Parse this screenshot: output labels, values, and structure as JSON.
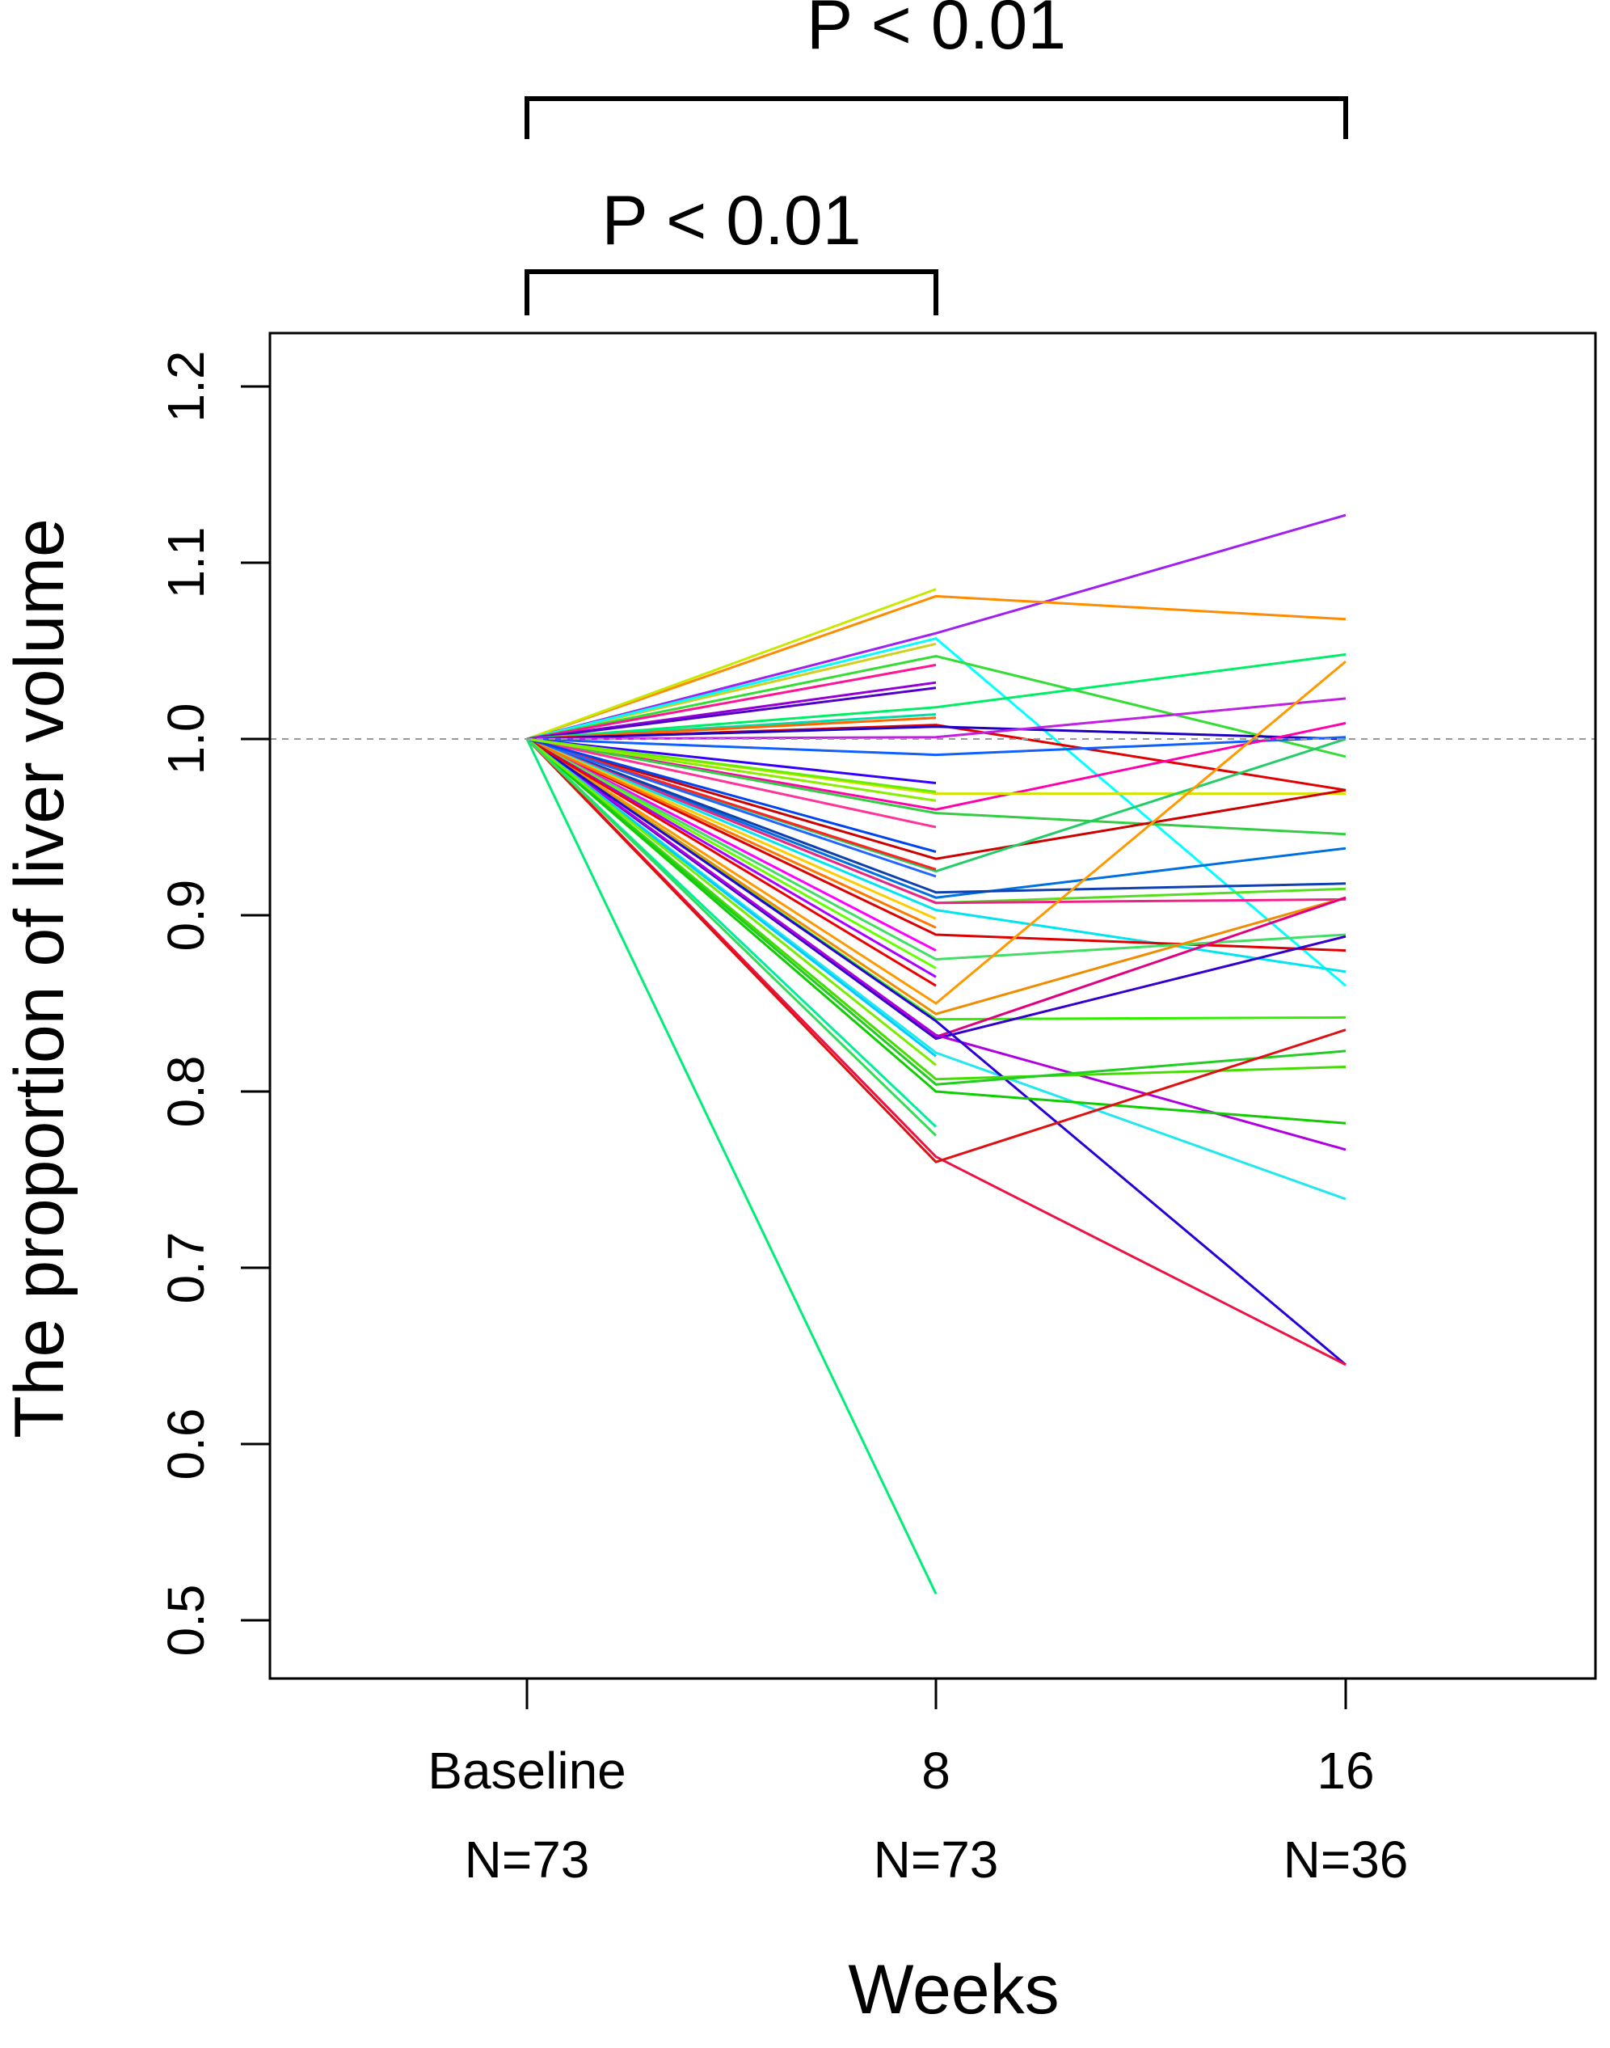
{
  "chart_data": {
    "type": "line",
    "title": "",
    "xlabel": "Weeks",
    "ylabel": "The proportion of liver volume",
    "categories": [
      "Baseline",
      "8",
      "16"
    ],
    "category_counts": [
      "N=73",
      "N=73",
      "N=36"
    ],
    "ylim": [
      0.47,
      1.23
    ],
    "yticks": [
      "0.5",
      "0.6",
      "0.7",
      "0.8",
      "0.9",
      "1.0",
      "1.1",
      "1.2"
    ],
    "reference_line": 1.0,
    "grid": false,
    "legend": "none",
    "comparisons": [
      {
        "from": "Baseline",
        "to": "16",
        "label": "P < 0.01"
      },
      {
        "from": "Baseline",
        "to": "8",
        "label": "P < 0.01"
      }
    ],
    "series": [
      {
        "color": "#a020f0",
        "values": [
          1.0,
          1.06,
          1.127
        ]
      },
      {
        "color": "#ff8c00",
        "values": [
          1.0,
          1.081,
          1.068
        ]
      },
      {
        "color": "#c8e800",
        "values": [
          1.0,
          1.085,
          null
        ]
      },
      {
        "color": "#d0d020",
        "values": [
          1.0,
          1.054,
          null
        ]
      },
      {
        "color": "#00ffff",
        "values": [
          1.0,
          1.057,
          0.86
        ]
      },
      {
        "color": "#33dd33",
        "values": [
          1.0,
          1.047,
          0.99
        ]
      },
      {
        "color": "#ff1493",
        "values": [
          1.0,
          1.042,
          null
        ]
      },
      {
        "color": "#9400d3",
        "values": [
          1.0,
          1.032,
          null
        ]
      },
      {
        "color": "#5000c8",
        "values": [
          1.0,
          1.029,
          null
        ]
      },
      {
        "color": "#00ee66",
        "values": [
          1.0,
          1.018,
          1.048
        ]
      },
      {
        "color": "#00ddaa",
        "values": [
          1.0,
          1.014,
          null
        ]
      },
      {
        "color": "#ff6600",
        "values": [
          1.0,
          1.012,
          null
        ]
      },
      {
        "color": "#e00000",
        "values": [
          1.0,
          1.008,
          0.971
        ]
      },
      {
        "color": "#2000c0",
        "values": [
          1.0,
          1.007,
          1.0
        ]
      },
      {
        "color": "#c020e0",
        "values": [
          1.0,
          1.001,
          1.023
        ]
      },
      {
        "color": "#1060ff",
        "values": [
          1.0,
          0.991,
          1.001
        ]
      },
      {
        "color": "#ff00aa",
        "values": [
          1.0,
          0.96,
          1.009
        ]
      },
      {
        "color": "#d4e400",
        "values": [
          1.0,
          0.969,
          0.969
        ]
      },
      {
        "color": "#33cc44",
        "values": [
          1.0,
          0.958,
          0.946
        ]
      },
      {
        "color": "#3300ff",
        "values": [
          1.0,
          0.975,
          null
        ]
      },
      {
        "color": "#66ee00",
        "values": [
          1.0,
          0.97,
          null
        ]
      },
      {
        "color": "#cc0000",
        "values": [
          1.0,
          0.932,
          0.971
        ]
      },
      {
        "color": "#22cc66",
        "values": [
          1.0,
          0.925,
          1.0
        ]
      },
      {
        "color": "#0070e0",
        "values": [
          1.0,
          0.91,
          0.938
        ]
      },
      {
        "color": "#1040b0",
        "values": [
          1.0,
          0.913,
          0.918
        ]
      },
      {
        "color": "#55dd22",
        "values": [
          1.0,
          0.907,
          0.915
        ]
      },
      {
        "color": "#ee2288",
        "values": [
          1.0,
          0.907,
          0.909
        ]
      },
      {
        "color": "#00e5ee",
        "values": [
          1.0,
          0.903,
          0.868
        ]
      },
      {
        "color": "#dd0000",
        "values": [
          1.0,
          0.889,
          0.88
        ]
      },
      {
        "color": "#ff00ff",
        "values": [
          1.0,
          0.88,
          null
        ]
      },
      {
        "color": "#44dd66",
        "values": [
          1.0,
          0.875,
          0.889
        ]
      },
      {
        "color": "#ff9900",
        "values": [
          1.0,
          0.85,
          1.044
        ]
      },
      {
        "color": "#f08c00",
        "values": [
          1.0,
          0.844,
          0.91
        ]
      },
      {
        "color": "#33ee00",
        "values": [
          1.0,
          0.841,
          0.842
        ]
      },
      {
        "color": "#e00080",
        "values": [
          1.0,
          0.831,
          0.91
        ]
      },
      {
        "color": "#3300cc",
        "values": [
          1.0,
          0.83,
          0.888
        ]
      },
      {
        "color": "#b000e0",
        "values": [
          1.0,
          0.832,
          0.767
        ]
      },
      {
        "color": "#20e8ee",
        "values": [
          1.0,
          0.822,
          0.739
        ]
      },
      {
        "color": "#2800d8",
        "values": [
          1.0,
          0.84,
          0.645
        ]
      },
      {
        "color": "#44dd00",
        "values": [
          1.0,
          0.807,
          0.814
        ]
      },
      {
        "color": "#22cc22",
        "values": [
          1.0,
          0.804,
          0.823
        ]
      },
      {
        "color": "#11cc00",
        "values": [
          1.0,
          0.8,
          0.782
        ]
      },
      {
        "color": "#ee1144",
        "values": [
          1.0,
          0.763,
          0.645
        ]
      },
      {
        "color": "#dd1111",
        "values": [
          1.0,
          0.76,
          0.835
        ]
      },
      {
        "color": "#00ee77",
        "values": [
          1.0,
          0.515,
          null
        ]
      },
      {
        "color": "#ff2222",
        "values": [
          1.0,
          0.926,
          null
        ]
      },
      {
        "color": "#2266ff",
        "values": [
          1.0,
          0.922,
          null
        ]
      },
      {
        "color": "#ffcc00",
        "values": [
          1.0,
          0.898,
          null
        ]
      },
      {
        "color": "#ff7700",
        "values": [
          1.0,
          0.893,
          null
        ]
      },
      {
        "color": "#66ff00",
        "values": [
          1.0,
          0.87,
          null
        ]
      },
      {
        "color": "#aa00ff",
        "values": [
          1.0,
          0.865,
          null
        ]
      },
      {
        "color": "#ee0000",
        "values": [
          1.0,
          0.86,
          null
        ]
      },
      {
        "color": "#00ccff",
        "values": [
          1.0,
          0.82,
          null
        ]
      },
      {
        "color": "#77ee00",
        "values": [
          1.0,
          0.815,
          null
        ]
      },
      {
        "color": "#00ee99",
        "values": [
          1.0,
          0.78,
          null
        ]
      },
      {
        "color": "#33dd55",
        "values": [
          1.0,
          0.775,
          null
        ]
      },
      {
        "color": "#ff3399",
        "values": [
          1.0,
          0.95,
          null
        ]
      },
      {
        "color": "#0044ee",
        "values": [
          1.0,
          0.936,
          null
        ]
      },
      {
        "color": "#88ee00",
        "values": [
          1.0,
          0.965,
          null
        ]
      }
    ]
  }
}
